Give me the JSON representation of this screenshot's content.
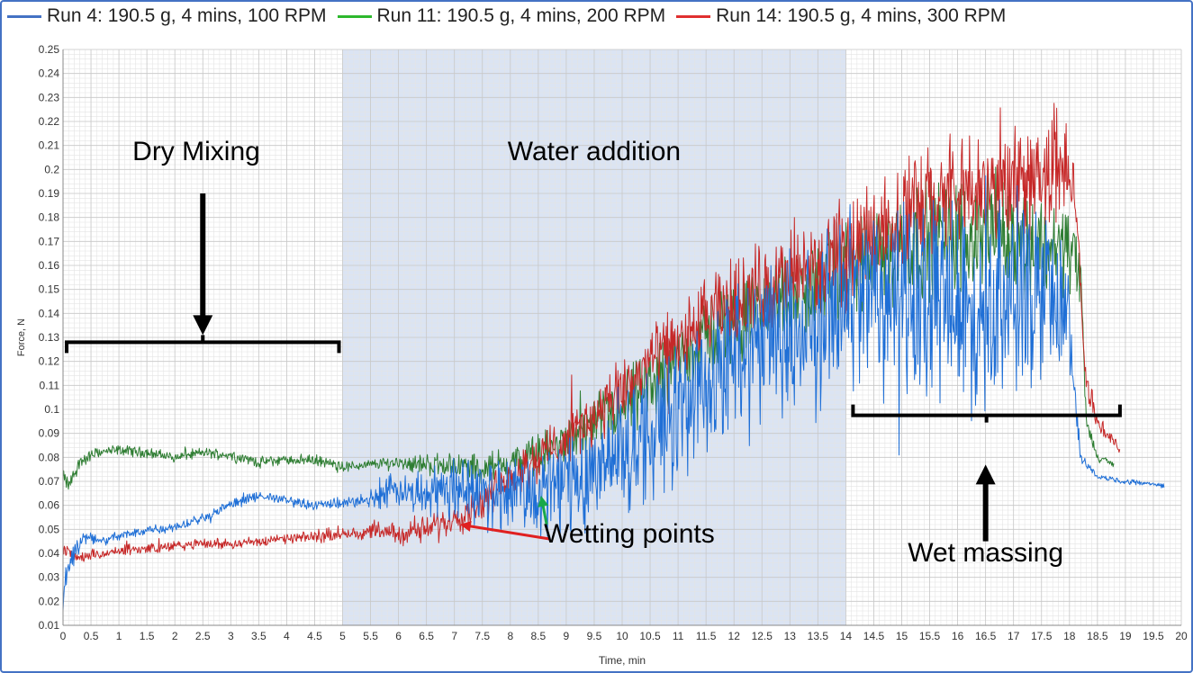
{
  "chart_data": {
    "type": "line",
    "xlabel": "Time, min",
    "ylabel": "Force, N",
    "xlim": [
      0,
      20
    ],
    "ylim": [
      0.01,
      0.25
    ],
    "x_ticks": [
      0,
      0.5,
      1,
      1.5,
      2,
      2.5,
      3,
      3.5,
      4,
      4.5,
      5,
      5.5,
      6,
      6.5,
      7,
      7.5,
      8,
      8.5,
      9,
      9.5,
      10,
      10.5,
      11,
      11.5,
      12,
      12.5,
      13,
      13.5,
      14,
      14.5,
      15,
      15.5,
      16,
      16.5,
      17,
      17.5,
      18,
      18.5,
      19,
      19.5,
      20
    ],
    "x_tick_labels": [
      "0",
      "0.5",
      "1",
      "1.5",
      "2",
      "2.5",
      "3",
      "3.5",
      "4",
      "4.5",
      "5",
      "5.5",
      "6",
      "6.5",
      "7",
      "7.5",
      "8",
      "8.5",
      "9",
      "9.5",
      "10",
      "10.5",
      "11",
      "11.5",
      "12",
      "12.5",
      "13",
      "13.5",
      "14",
      "14.5",
      "15",
      "15.5",
      "16",
      "16.5",
      "17",
      "17.5",
      "18",
      "18.5",
      "19",
      "19.5",
      "20"
    ],
    "y_ticks": [
      0.01,
      0.02,
      0.03,
      0.04,
      0.05,
      0.06,
      0.07,
      0.08,
      0.09,
      0.1,
      0.11,
      0.12,
      0.13,
      0.14,
      0.15,
      0.16,
      0.17,
      0.18,
      0.19,
      0.2,
      0.21,
      0.22,
      0.23,
      0.24,
      0.25
    ],
    "y_tick_labels": [
      "0.01",
      "0.02",
      "0.03",
      "0.04",
      "0.05",
      "0.06",
      "0.07",
      "0.08",
      "0.09",
      "0.1",
      "0.11",
      "0.12",
      "0.13",
      "0.14",
      "0.15",
      "0.16",
      "0.17",
      "0.18",
      "0.19",
      "0.2",
      "0.21",
      "0.22",
      "0.23",
      "0.24",
      "0.25"
    ],
    "grid": true,
    "legend_position": "top",
    "shaded_region": {
      "x_start": 5,
      "x_end": 14,
      "color": "#dbe4f3"
    },
    "series": [
      {
        "name": "Run 4: 190.5 g, 4 mins, 100 RPM",
        "color": "#1f6fd6",
        "legend_color": "#4472c4",
        "x": [
          0,
          0.05,
          0.2,
          0.4,
          0.7,
          1,
          1.5,
          2,
          2.5,
          3,
          3.5,
          4,
          4.5,
          5,
          5.5,
          5.8,
          6.2,
          6.5,
          7,
          7.5,
          8,
          8.5,
          9,
          9.5,
          10,
          10.5,
          11,
          11.5,
          12,
          12.5,
          13,
          13.5,
          14,
          14.5,
          15,
          15.5,
          16,
          16.5,
          17,
          17.5,
          18,
          18.05,
          18.2,
          18.5,
          19,
          19.5,
          19.7
        ],
        "center": [
          0.018,
          0.03,
          0.042,
          0.047,
          0.045,
          0.047,
          0.05,
          0.051,
          0.055,
          0.06,
          0.064,
          0.062,
          0.06,
          0.061,
          0.062,
          0.066,
          0.065,
          0.066,
          0.068,
          0.066,
          0.066,
          0.066,
          0.07,
          0.075,
          0.082,
          0.09,
          0.1,
          0.11,
          0.12,
          0.128,
          0.13,
          0.135,
          0.145,
          0.15,
          0.145,
          0.148,
          0.145,
          0.14,
          0.145,
          0.143,
          0.14,
          0.12,
          0.08,
          0.072,
          0.07,
          0.069,
          0.068
        ],
        "noise": [
          0.003,
          0.004,
          0.006,
          0.003,
          0.002,
          0.002,
          0.002,
          0.002,
          0.002,
          0.002,
          0.002,
          0.002,
          0.002,
          0.002,
          0.003,
          0.006,
          0.008,
          0.01,
          0.012,
          0.014,
          0.016,
          0.018,
          0.02,
          0.022,
          0.024,
          0.026,
          0.028,
          0.03,
          0.03,
          0.03,
          0.032,
          0.033,
          0.035,
          0.038,
          0.04,
          0.042,
          0.04,
          0.04,
          0.04,
          0.038,
          0.03,
          0.01,
          0.002,
          0.001,
          0.001,
          0.001,
          0.001
        ]
      },
      {
        "name": "Run 11: 190.5 g, 4 mins, 200 RPM",
        "color": "#2e7d32",
        "legend_color": "#2eb82e",
        "x": [
          0,
          0.1,
          0.3,
          0.6,
          1,
          1.5,
          2,
          2.5,
          3,
          3.5,
          4,
          4.5,
          5,
          5.5,
          6,
          6.5,
          7,
          7.5,
          8,
          8.5,
          9,
          9.5,
          10,
          10.5,
          11,
          11.5,
          12,
          12.5,
          13,
          13.5,
          14,
          14.5,
          15,
          15.5,
          16,
          16.5,
          17,
          17.5,
          18,
          18.2,
          18.3,
          18.5,
          18.8
        ],
        "center": [
          0.072,
          0.068,
          0.078,
          0.082,
          0.083,
          0.082,
          0.08,
          0.082,
          0.081,
          0.078,
          0.079,
          0.079,
          0.076,
          0.077,
          0.078,
          0.077,
          0.077,
          0.075,
          0.078,
          0.081,
          0.086,
          0.093,
          0.1,
          0.11,
          0.12,
          0.13,
          0.137,
          0.143,
          0.148,
          0.152,
          0.158,
          0.163,
          0.168,
          0.172,
          0.172,
          0.174,
          0.172,
          0.168,
          0.168,
          0.155,
          0.095,
          0.08,
          0.077
        ],
        "noise": [
          0.003,
          0.003,
          0.003,
          0.002,
          0.002,
          0.002,
          0.002,
          0.002,
          0.002,
          0.002,
          0.002,
          0.002,
          0.002,
          0.002,
          0.003,
          0.004,
          0.005,
          0.006,
          0.007,
          0.008,
          0.009,
          0.011,
          0.013,
          0.014,
          0.015,
          0.015,
          0.016,
          0.016,
          0.017,
          0.017,
          0.02,
          0.022,
          0.022,
          0.022,
          0.022,
          0.02,
          0.02,
          0.02,
          0.018,
          0.015,
          0.003,
          0.002,
          0.001
        ]
      },
      {
        "name": "Run 14: 190.5 g, 4 mins, 300 RPM",
        "color": "#c62828",
        "legend_color": "#e03030",
        "x": [
          0,
          0.3,
          0.6,
          1,
          1.5,
          2,
          2.5,
          3,
          3.5,
          4,
          4.5,
          5,
          5.5,
          6,
          6.5,
          7,
          7.5,
          8,
          8.5,
          9,
          9.5,
          10,
          10.5,
          11,
          11.5,
          12,
          12.5,
          13,
          13.5,
          14,
          14.5,
          15,
          15.5,
          16,
          16.5,
          17,
          17.5,
          18,
          18.1,
          18.3,
          18.5,
          18.9
        ],
        "center": [
          0.042,
          0.038,
          0.039,
          0.041,
          0.042,
          0.043,
          0.044,
          0.044,
          0.045,
          0.046,
          0.047,
          0.048,
          0.049,
          0.048,
          0.05,
          0.055,
          0.062,
          0.072,
          0.08,
          0.088,
          0.097,
          0.107,
          0.12,
          0.128,
          0.137,
          0.145,
          0.15,
          0.155,
          0.158,
          0.165,
          0.175,
          0.182,
          0.185,
          0.19,
          0.19,
          0.195,
          0.198,
          0.198,
          0.19,
          0.11,
          0.095,
          0.083
        ],
        "noise": [
          0.003,
          0.002,
          0.002,
          0.002,
          0.002,
          0.002,
          0.002,
          0.002,
          0.002,
          0.002,
          0.002,
          0.002,
          0.003,
          0.004,
          0.005,
          0.006,
          0.007,
          0.008,
          0.009,
          0.01,
          0.011,
          0.013,
          0.014,
          0.015,
          0.016,
          0.017,
          0.018,
          0.018,
          0.018,
          0.02,
          0.02,
          0.022,
          0.022,
          0.022,
          0.022,
          0.022,
          0.02,
          0.02,
          0.01,
          0.005,
          0.003,
          0.002
        ]
      }
    ],
    "annotations": {
      "dry_mixing": {
        "label": "Dry Mixing",
        "x_start": 0,
        "x_end": 5,
        "bracket_y": 0.128,
        "arrow_x": 2.5,
        "arrow_from_y": 0.19,
        "arrow_to_y": 0.131
      },
      "water_addition": {
        "label": "Water addition",
        "x": 9.5,
        "y": 0.208
      },
      "wet_massing": {
        "label": "Wet massing",
        "x_start": 14,
        "x_end": 19,
        "bracket_y": 0.0975,
        "arrow_x": 16.5,
        "arrow_from_y": 0.045,
        "arrow_to_y": 0.077,
        "label_x": 16.5,
        "label_y": 0.039
      },
      "wetting_points": {
        "label": "Wetting points",
        "label_x": 8.65,
        "label_y": 0.046,
        "arrows": [
          {
            "color": "#e02020",
            "from_x": 8.7,
            "from_y": 0.046,
            "to_x": 7.1,
            "to_y": 0.052
          },
          {
            "color": "#1aa84a",
            "from_x": 8.65,
            "from_y": 0.052,
            "to_x": 8.55,
            "to_y": 0.064
          }
        ]
      }
    }
  }
}
